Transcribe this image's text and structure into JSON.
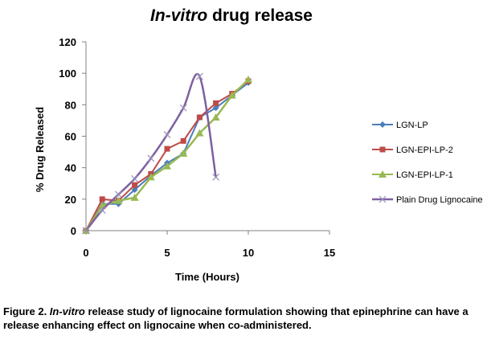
{
  "chart_data": {
    "type": "line",
    "title_italic": "In-vitro",
    "title_rest": " drug release",
    "xlabel": "Time (Hours)",
    "ylabel": "% Drug Released",
    "xlim": [
      0,
      15
    ],
    "ylim": [
      0,
      120
    ],
    "xticks": [
      0,
      5,
      10,
      15
    ],
    "yticks": [
      0,
      20,
      40,
      60,
      80,
      100,
      120
    ],
    "grid": false,
    "legend_position": "right",
    "series": [
      {
        "name": "LGN-LP",
        "color": "#4a7ebb",
        "marker": "diamond",
        "smooth": false,
        "x": [
          0,
          1,
          2,
          3,
          4,
          5,
          6,
          7,
          8,
          9,
          10
        ],
        "y": [
          0,
          17,
          17,
          26,
          35,
          43,
          49,
          72,
          78,
          86,
          94
        ]
      },
      {
        "name": "LGN-EPI-LP-2",
        "color": "#be4b48",
        "marker": "square",
        "smooth": false,
        "x": [
          0,
          1,
          2,
          3,
          4,
          5,
          6,
          7,
          8,
          9,
          10
        ],
        "y": [
          0,
          20,
          19,
          29,
          36,
          52,
          57,
          72,
          81,
          87,
          95
        ]
      },
      {
        "name": "LGN-EPI-LP-1",
        "color": "#98b954",
        "marker": "triangle",
        "smooth": false,
        "x": [
          0,
          1,
          2,
          3,
          4,
          5,
          6,
          7,
          8,
          9,
          10
        ],
        "y": [
          0,
          16,
          19,
          21,
          34,
          41,
          49,
          62,
          72,
          86,
          96
        ]
      },
      {
        "name": "Plain Drug Lignocaine",
        "color": "#7d60a0",
        "marker": "x",
        "smooth": true,
        "x": [
          0,
          1,
          2,
          3,
          4,
          5,
          6,
          7,
          8
        ],
        "y": [
          0,
          13,
          23,
          33,
          46,
          61,
          78,
          98,
          34
        ]
      }
    ]
  },
  "caption": {
    "lead": "Figure 2. ",
    "italic": "In-vitro",
    "rest": " release study of lignocaine formulation showing that epinephrine can have a release enhancing effect on lignocaine when co-administered."
  }
}
